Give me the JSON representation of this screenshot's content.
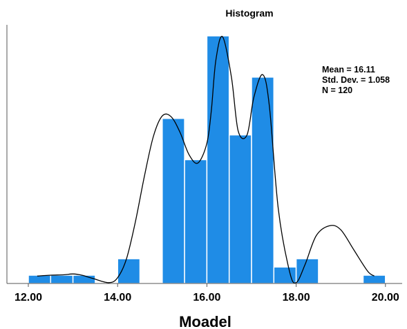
{
  "chart_data": {
    "type": "bar",
    "title": "Histogram",
    "xlabel": "Moadel",
    "ylabel": "",
    "xlim": [
      11.8,
      20.65
    ],
    "ylim": [
      0,
      30
    ],
    "bin_width": 0.5,
    "x_ticks": [
      "12.00",
      "14.00",
      "16.00",
      "18.00",
      "20.00"
    ],
    "x_tick_values": [
      12,
      14,
      16,
      18,
      20
    ],
    "bins": [
      {
        "start": 12.0,
        "end": 12.5,
        "count": 1
      },
      {
        "start": 12.5,
        "end": 13.0,
        "count": 1
      },
      {
        "start": 13.0,
        "end": 13.5,
        "count": 1
      },
      {
        "start": 14.0,
        "end": 14.5,
        "count": 3
      },
      {
        "start": 15.0,
        "end": 15.5,
        "count": 20
      },
      {
        "start": 15.5,
        "end": 16.0,
        "count": 15
      },
      {
        "start": 16.0,
        "end": 16.5,
        "count": 30
      },
      {
        "start": 16.5,
        "end": 17.0,
        "count": 18
      },
      {
        "start": 17.0,
        "end": 17.5,
        "count": 25
      },
      {
        "start": 17.5,
        "end": 18.0,
        "count": 2
      },
      {
        "start": 18.0,
        "end": 18.5,
        "count": 3
      },
      {
        "start": 19.5,
        "end": 20.0,
        "count": 1
      }
    ],
    "curve": [
      [
        12.2,
        0.9
      ],
      [
        12.5,
        1.0
      ],
      [
        12.8,
        1.05
      ],
      [
        13.0,
        1.15
      ],
      [
        13.2,
        1.0
      ],
      [
        13.45,
        0.6
      ],
      [
        13.8,
        0.1
      ],
      [
        14.0,
        0.7
      ],
      [
        14.2,
        3.0
      ],
      [
        14.4,
        7.5
      ],
      [
        14.6,
        13.0
      ],
      [
        14.8,
        17.8
      ],
      [
        15.0,
        20.3
      ],
      [
        15.2,
        20.2
      ],
      [
        15.4,
        18.3
      ],
      [
        15.6,
        15.6
      ],
      [
        15.8,
        14.6
      ],
      [
        16.0,
        17.0
      ],
      [
        16.1,
        21.0
      ],
      [
        16.2,
        27.0
      ],
      [
        16.35,
        29.9
      ],
      [
        16.55,
        25.0
      ],
      [
        16.7,
        18.5
      ],
      [
        16.9,
        18.0
      ],
      [
        17.05,
        22.5
      ],
      [
        17.25,
        25.3
      ],
      [
        17.4,
        21.5
      ],
      [
        17.6,
        9.0
      ],
      [
        17.85,
        1.5
      ],
      [
        18.0,
        0.1
      ],
      [
        18.2,
        2.3
      ],
      [
        18.45,
        5.8
      ],
      [
        18.75,
        7.0
      ],
      [
        19.0,
        6.5
      ],
      [
        19.3,
        4.0
      ],
      [
        19.6,
        1.5
      ],
      [
        19.75,
        0.9
      ]
    ],
    "bar_color": "#1f8ce6",
    "bar_edge_color": "#ffffff",
    "curve_color": "#000000",
    "grid": false,
    "legend": "none",
    "stats": [
      "Mean = 16.11",
      "Std. Dev. = 1.058",
      "N = 120"
    ],
    "stats_position": "top-right"
  }
}
